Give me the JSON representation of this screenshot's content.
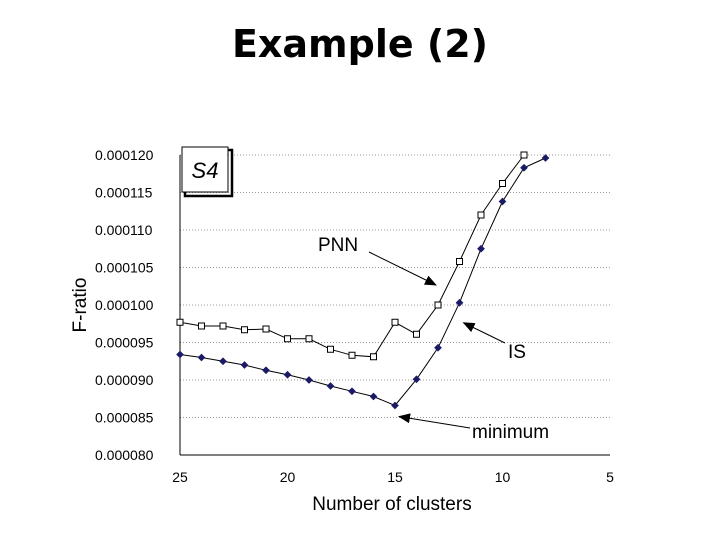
{
  "slide": {
    "title": "Example (2)"
  },
  "chart_data": {
    "type": "line",
    "title": "",
    "xlabel": "Number of clusters",
    "ylabel": "F-ratio",
    "x_ticks": [
      "25",
      "20",
      "15",
      "10",
      "5"
    ],
    "y_ticks": [
      "0.000080",
      "0.000085",
      "0.000090",
      "0.000095",
      "0.000100",
      "0.000105",
      "0.000110",
      "0.000115",
      "0.000120"
    ],
    "ylim": [
      8e-05,
      0.00012
    ],
    "xlim": [
      25,
      5
    ],
    "x_axis_reversed": true,
    "grid": "horizontal dotted",
    "inset_label": "S4",
    "series": [
      {
        "name": "PNN",
        "marker": "open-square",
        "color": "#000000",
        "x": [
          25,
          24,
          23,
          22,
          21,
          20,
          19,
          18,
          17,
          16,
          15,
          14,
          13,
          12,
          11,
          10,
          9
        ],
        "values": [
          9.77e-05,
          9.72e-05,
          9.72e-05,
          9.67e-05,
          9.68e-05,
          9.55e-05,
          9.55e-05,
          9.41e-05,
          9.33e-05,
          9.31e-05,
          9.77e-05,
          9.61e-05,
          0.0001,
          0.0001058,
          0.000112,
          0.0001162,
          0.00012
        ]
      },
      {
        "name": "IS",
        "marker": "filled-diamond",
        "color": "#1a1a66",
        "x": [
          25,
          24,
          23,
          22,
          21,
          20,
          19,
          18,
          17,
          16,
          15,
          14,
          13,
          12,
          11,
          10,
          9,
          8
        ],
        "values": [
          9.34e-05,
          9.3e-05,
          9.25e-05,
          9.2e-05,
          9.13e-05,
          9.07e-05,
          9e-05,
          8.92e-05,
          8.85e-05,
          8.78e-05,
          8.66e-05,
          9.01e-05,
          9.43e-05,
          0.0001003,
          0.0001075,
          0.0001138,
          0.0001183,
          0.0001196
        ]
      }
    ],
    "annotations": [
      {
        "text": "PNN",
        "target_series": "PNN",
        "target_x": 13
      },
      {
        "text": "IS",
        "target_series": "IS",
        "target_x": 12
      },
      {
        "text": "minimum",
        "target_series": "IS",
        "target_x": 15
      }
    ]
  }
}
